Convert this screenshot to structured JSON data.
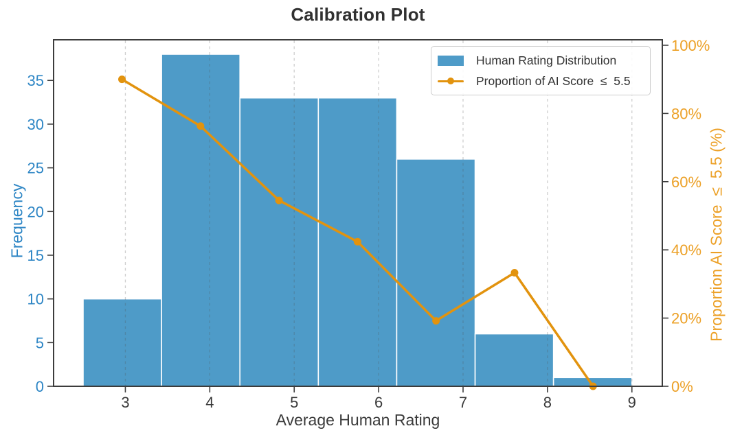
{
  "title": "Calibration Plot",
  "chart_data": {
    "type": "bar",
    "subtype": "histogram-with-line-overlay",
    "title": "Calibration Plot",
    "xlabel": "Average Human Rating",
    "ylabel_left": "Frequency",
    "ylabel_right": "Proportion AI Score  ≤  5.5 (%)",
    "bin_edges": [
      2.5,
      3.4286,
      4.3571,
      5.2857,
      6.2143,
      7.1429,
      8.0714,
      9.0
    ],
    "bin_centers": [
      2.96,
      3.89,
      4.82,
      5.75,
      6.68,
      7.61,
      8.54
    ],
    "series": [
      {
        "name": "Human Rating Distribution",
        "kind": "histogram",
        "axis": "left",
        "values": [
          10,
          38,
          33,
          33,
          26,
          6,
          1
        ],
        "color": "#4e9bc8",
        "edge_color": "#ffffff"
      },
      {
        "name": "Proportion of AI Score ≤ 5.5",
        "kind": "line",
        "axis": "right",
        "values_pct": [
          90.0,
          76.3,
          54.5,
          42.4,
          19.2,
          33.3,
          0.0
        ],
        "color": "#e2930e"
      }
    ],
    "x_ticks": [
      3,
      4,
      5,
      6,
      7,
      8,
      9
    ],
    "y_left_ticks": [
      0,
      5,
      10,
      15,
      20,
      25,
      30,
      35
    ],
    "y_right_ticks": [
      0,
      20,
      40,
      60,
      80,
      100
    ],
    "y_right_tick_suffix": "%",
    "xlim": [
      2.15,
      9.36
    ],
    "ylim_left": [
      0,
      39.65
    ],
    "ylim_right": [
      0,
      101.6
    ],
    "grid": "vertical-dashed",
    "legend_position": "upper-right"
  },
  "legend": {
    "items": [
      {
        "label": "Human Rating Distribution",
        "swatch": "bar"
      },
      {
        "label": "Proportion of AI Score  ≤  5.5",
        "swatch": "line-marker"
      }
    ]
  },
  "colors": {
    "bar_fill": "#4e9bc8",
    "bar_edge": "#ffffff",
    "line": "#e2930e",
    "left_axis_text": "#2e86c5",
    "right_axis_text": "#eca026",
    "dark_text": "#3a3a3a",
    "spine": "#3c3c3c",
    "grid": "rgba(80,80,80,0.28)",
    "background": "#ffffff"
  }
}
